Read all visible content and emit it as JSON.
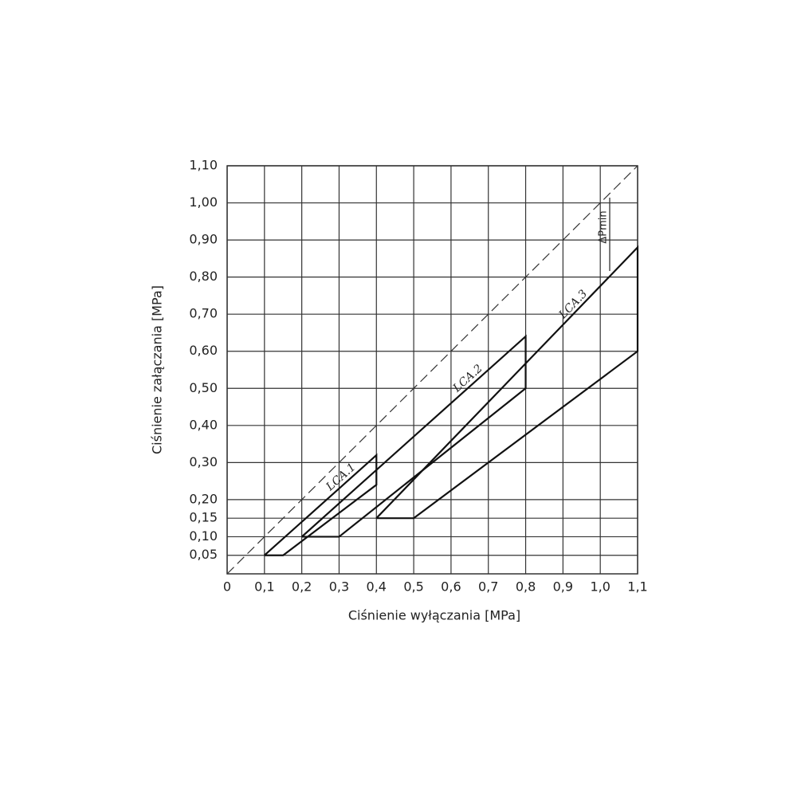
{
  "chart_data": {
    "type": "line",
    "x_label": "Ciśnienie wyłączania [MPa]",
    "y_label": "Ciśnienie załączania [MPa]",
    "annotation": "ΔPmin",
    "xlim": [
      0,
      1.1
    ],
    "ylim": [
      0,
      1.1
    ],
    "xticks": [
      0,
      {
        "value": 0.1,
        "label": "0,1"
      },
      {
        "value": 0.2,
        "label": "0,2"
      },
      {
        "value": 0.3,
        "label": "0,3"
      },
      {
        "value": 0.4,
        "label": "0,4"
      },
      {
        "value": 0.5,
        "label": "0,5"
      },
      {
        "value": 0.6,
        "label": "0,6"
      },
      {
        "value": 0.7,
        "label": "0,7"
      },
      {
        "value": 0.8,
        "label": "0,8"
      },
      {
        "value": 0.9,
        "label": "0,9"
      },
      {
        "value": 1.0,
        "label": "1,0"
      },
      {
        "value": 1.1,
        "label": "1,1"
      }
    ],
    "yticks": [
      {
        "value": 0.05,
        "label": "0,05"
      },
      {
        "value": 0.1,
        "label": "0,10"
      },
      {
        "value": 0.15,
        "label": "0,15"
      },
      {
        "value": 0.2,
        "label": "0,20"
      },
      {
        "value": 0.3,
        "label": "0,30"
      },
      {
        "value": 0.4,
        "label": "0,40"
      },
      {
        "value": 0.5,
        "label": "0,50"
      },
      {
        "value": 0.6,
        "label": "0,60"
      },
      {
        "value": 0.7,
        "label": "0,70"
      },
      {
        "value": 0.8,
        "label": "0,80"
      },
      {
        "value": 0.9,
        "label": "0,90"
      },
      {
        "value": 1.0,
        "label": "1,00"
      },
      {
        "value": 1.1,
        "label": "1,10"
      }
    ],
    "grid": true,
    "series": [
      {
        "name": "LCA.1",
        "color": "#111111",
        "x": [
          0.1,
          0.4,
          0.4,
          0.15,
          0.1
        ],
        "values": [
          0.05,
          0.32,
          0.24,
          0.05,
          0.05
        ]
      },
      {
        "name": "LCA.2",
        "color": "#111111",
        "x": [
          0.2,
          0.8,
          0.8,
          0.3,
          0.2
        ],
        "values": [
          0.1,
          0.64,
          0.5,
          0.1,
          0.1
        ]
      },
      {
        "name": "LCA.3",
        "color": "#111111",
        "x": [
          0.4,
          1.1,
          1.1,
          0.5,
          0.4
        ],
        "values": [
          0.15,
          0.88,
          0.6,
          0.15,
          0.15
        ]
      },
      {
        "color": "#333333",
        "dashed": true,
        "x": [
          0,
          1.1
        ],
        "values": [
          0,
          1.1
        ]
      }
    ]
  }
}
